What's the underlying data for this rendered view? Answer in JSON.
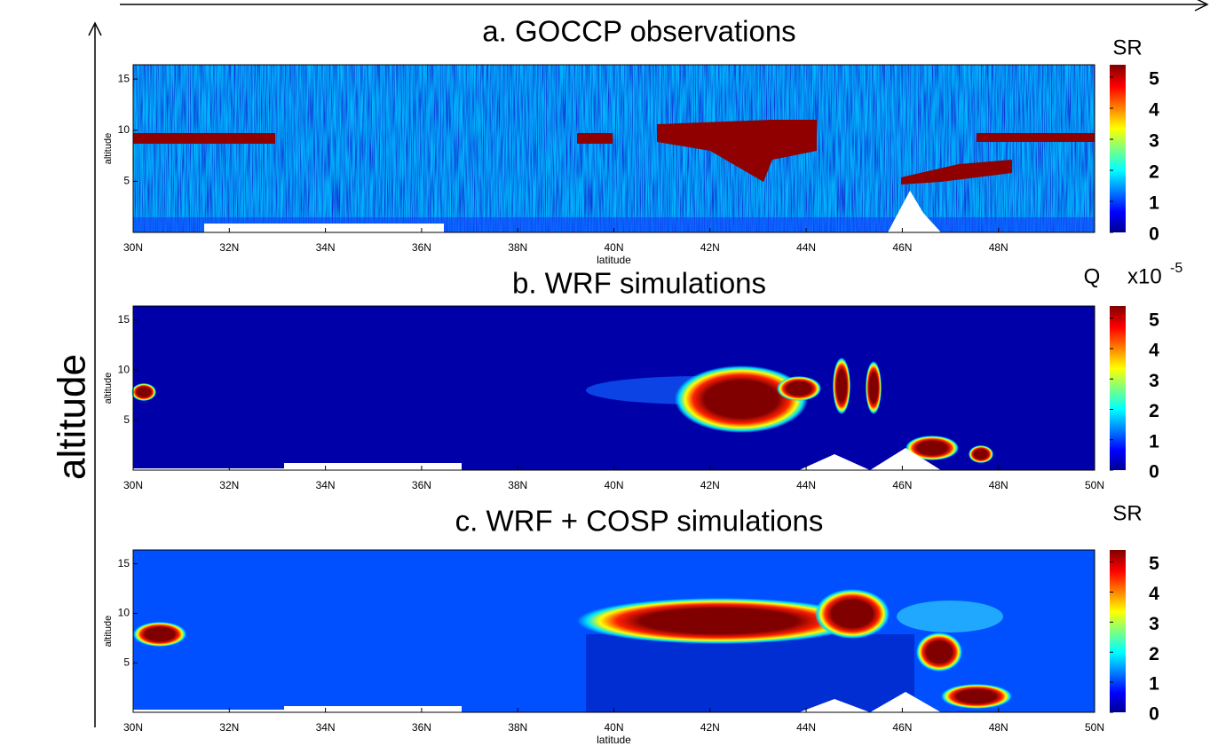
{
  "axis_label": "altitude",
  "chart_data": [
    {
      "type": "heatmap",
      "title": "a. GOCCP observations",
      "colorbar_label": "SR",
      "colorbar_ticks": [
        0,
        1,
        2,
        3,
        4,
        5
      ],
      "colorbar_lim": [
        0,
        5.4
      ],
      "xlabel": "latitude",
      "ylabel": "altitude",
      "xlim": [
        30,
        50
      ],
      "ylim": [
        0,
        16.4
      ],
      "yticks": [
        5,
        10,
        15
      ],
      "xticks": [
        {
          "value": 30,
          "label": "30N"
        },
        {
          "value": 32,
          "label": "32N"
        },
        {
          "value": 34,
          "label": "34N"
        },
        {
          "value": 36,
          "label": "36N"
        },
        {
          "value": 38,
          "label": "38N"
        },
        {
          "value": 40,
          "label": "40N"
        },
        {
          "value": 42,
          "label": "42N"
        },
        {
          "value": 44,
          "label": "44N"
        },
        {
          "value": 46,
          "label": "46N"
        },
        {
          "value": 48,
          "label": "48N"
        }
      ]
    },
    {
      "type": "heatmap",
      "title": "b. WRF simulations",
      "colorbar_label": "Q",
      "colorbar_multiplier": "x10",
      "colorbar_exponent": "-5",
      "colorbar_ticks": [
        0,
        1,
        2,
        3,
        4,
        5
      ],
      "colorbar_lim": [
        0,
        5.4
      ],
      "ylabel": "altitude",
      "xlim": [
        30,
        50
      ],
      "ylim": [
        0,
        16.4
      ],
      "yticks": [
        5,
        10,
        15
      ],
      "xticks": [
        {
          "value": 30,
          "label": "30N"
        },
        {
          "value": 32,
          "label": "32N"
        },
        {
          "value": 34,
          "label": "34N"
        },
        {
          "value": 36,
          "label": "36N"
        },
        {
          "value": 38,
          "label": "38N"
        },
        {
          "value": 40,
          "label": "40N"
        },
        {
          "value": 42,
          "label": "42N"
        },
        {
          "value": 44,
          "label": "44N"
        },
        {
          "value": 46,
          "label": "46N"
        },
        {
          "value": 48,
          "label": "48N"
        },
        {
          "value": 50,
          "label": "50N"
        }
      ]
    },
    {
      "type": "heatmap",
      "title": "c. WRF + COSP simulations",
      "colorbar_label": "SR",
      "colorbar_ticks": [
        0,
        1,
        2,
        3,
        4,
        5
      ],
      "colorbar_lim": [
        0,
        5.4
      ],
      "xlabel": "latitude",
      "ylabel": "altitude",
      "xlim": [
        30,
        50
      ],
      "ylim": [
        0,
        16.4
      ],
      "yticks": [
        5,
        10,
        15
      ],
      "xticks": [
        {
          "value": 30,
          "label": "30N"
        },
        {
          "value": 32,
          "label": "32N"
        },
        {
          "value": 34,
          "label": "34N"
        },
        {
          "value": 36,
          "label": "36N"
        },
        {
          "value": 38,
          "label": "38N"
        },
        {
          "value": 40,
          "label": "40N"
        },
        {
          "value": 42,
          "label": "42N"
        },
        {
          "value": 44,
          "label": "44N"
        },
        {
          "value": 46,
          "label": "46N"
        },
        {
          "value": 48,
          "label": "48N"
        },
        {
          "value": 50,
          "label": "50N"
        }
      ]
    }
  ]
}
